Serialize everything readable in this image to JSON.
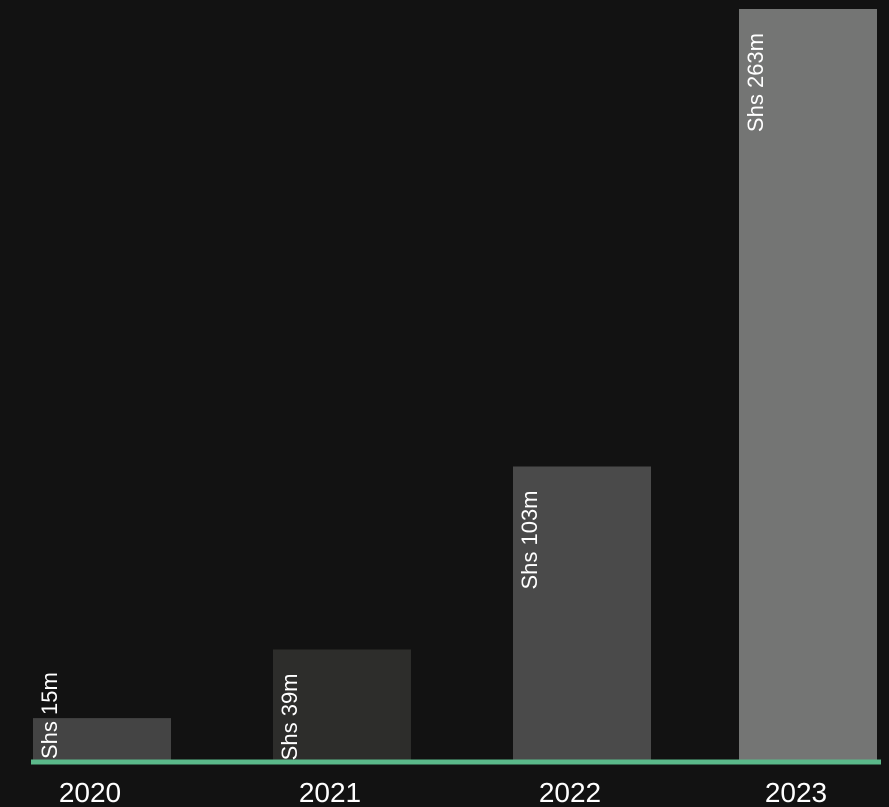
{
  "chart_data": {
    "type": "bar",
    "categories": [
      "2020",
      "2021",
      "2022",
      "2023"
    ],
    "values": [
      15,
      39,
      103,
      263
    ],
    "data_labels": [
      "Shs 15m",
      "Shs 39m",
      "Shs 103m",
      "Shs 263m"
    ],
    "title": "",
    "xlabel": "",
    "ylabel": "",
    "ylim": [
      0,
      263
    ],
    "grid": false,
    "legend": "none",
    "colors": {
      "background": "#121212",
      "axis_line": "#5bb98a",
      "bars": [
        "#444444",
        "#2d2d2b",
        "#4a4a4a",
        "#747574"
      ],
      "text": "#ffffff"
    }
  }
}
